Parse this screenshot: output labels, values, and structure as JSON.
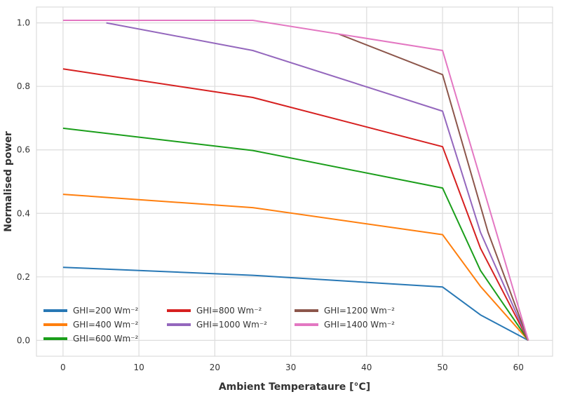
{
  "chart_data": {
    "type": "line",
    "title": "",
    "xlabel": "Ambient Temperataure [°C]",
    "ylabel": "Normalised power",
    "xlim": [
      -3.5,
      64.5
    ],
    "ylim": [
      -0.05,
      1.05
    ],
    "xticks": [
      0,
      10,
      20,
      30,
      40,
      50,
      60
    ],
    "xtick_labels": [
      "0",
      "10",
      "20",
      "30",
      "40",
      "50",
      "60"
    ],
    "yticks": [
      0.0,
      0.2,
      0.4,
      0.6,
      0.8,
      1.0
    ],
    "ytick_labels": [
      "0.0",
      "0.2",
      "0.4",
      "0.6",
      "0.8",
      "1.0"
    ],
    "grid": true,
    "legend_position": "lower-left",
    "series": [
      {
        "name": "GHI=200 Wm⁻²",
        "color": "#2878b5",
        "x": [
          0,
          25,
          50,
          55,
          61.3
        ],
        "y": [
          0.23,
          0.205,
          0.168,
          0.08,
          0.0
        ]
      },
      {
        "name": "GHI=400 Wm⁻²",
        "color": "#ff7f0e",
        "x": [
          0,
          25,
          50,
          55,
          61.3
        ],
        "y": [
          0.46,
          0.418,
          0.333,
          0.17,
          0.0
        ]
      },
      {
        "name": "GHI=600 Wm⁻²",
        "color": "#1a9e1a",
        "x": [
          0,
          25,
          50,
          55,
          61.3
        ],
        "y": [
          0.668,
          0.598,
          0.48,
          0.22,
          0.0
        ]
      },
      {
        "name": "GHI=800 Wm⁻²",
        "color": "#d62020",
        "x": [
          0,
          25,
          50,
          55,
          61.3
        ],
        "y": [
          0.855,
          0.765,
          0.61,
          0.29,
          0.0
        ]
      },
      {
        "name": "GHI=1000 Wm⁻²",
        "color": "#9467bd",
        "x": [
          5.7,
          25,
          50,
          55,
          61.3
        ],
        "y": [
          1.0,
          0.913,
          0.722,
          0.34,
          0.0
        ]
      },
      {
        "name": "GHI=1200 Wm⁻²",
        "color": "#8c564b",
        "x": [
          36.3,
          50,
          56,
          61.3
        ],
        "y": [
          0.965,
          0.837,
          0.34,
          0.0
        ]
      },
      {
        "name": "GHI=1400 Wm⁻²",
        "color": "#e377c2",
        "x": [
          0,
          25,
          50,
          61.3
        ],
        "y": [
          1.008,
          1.008,
          0.913,
          0.0
        ]
      }
    ]
  }
}
